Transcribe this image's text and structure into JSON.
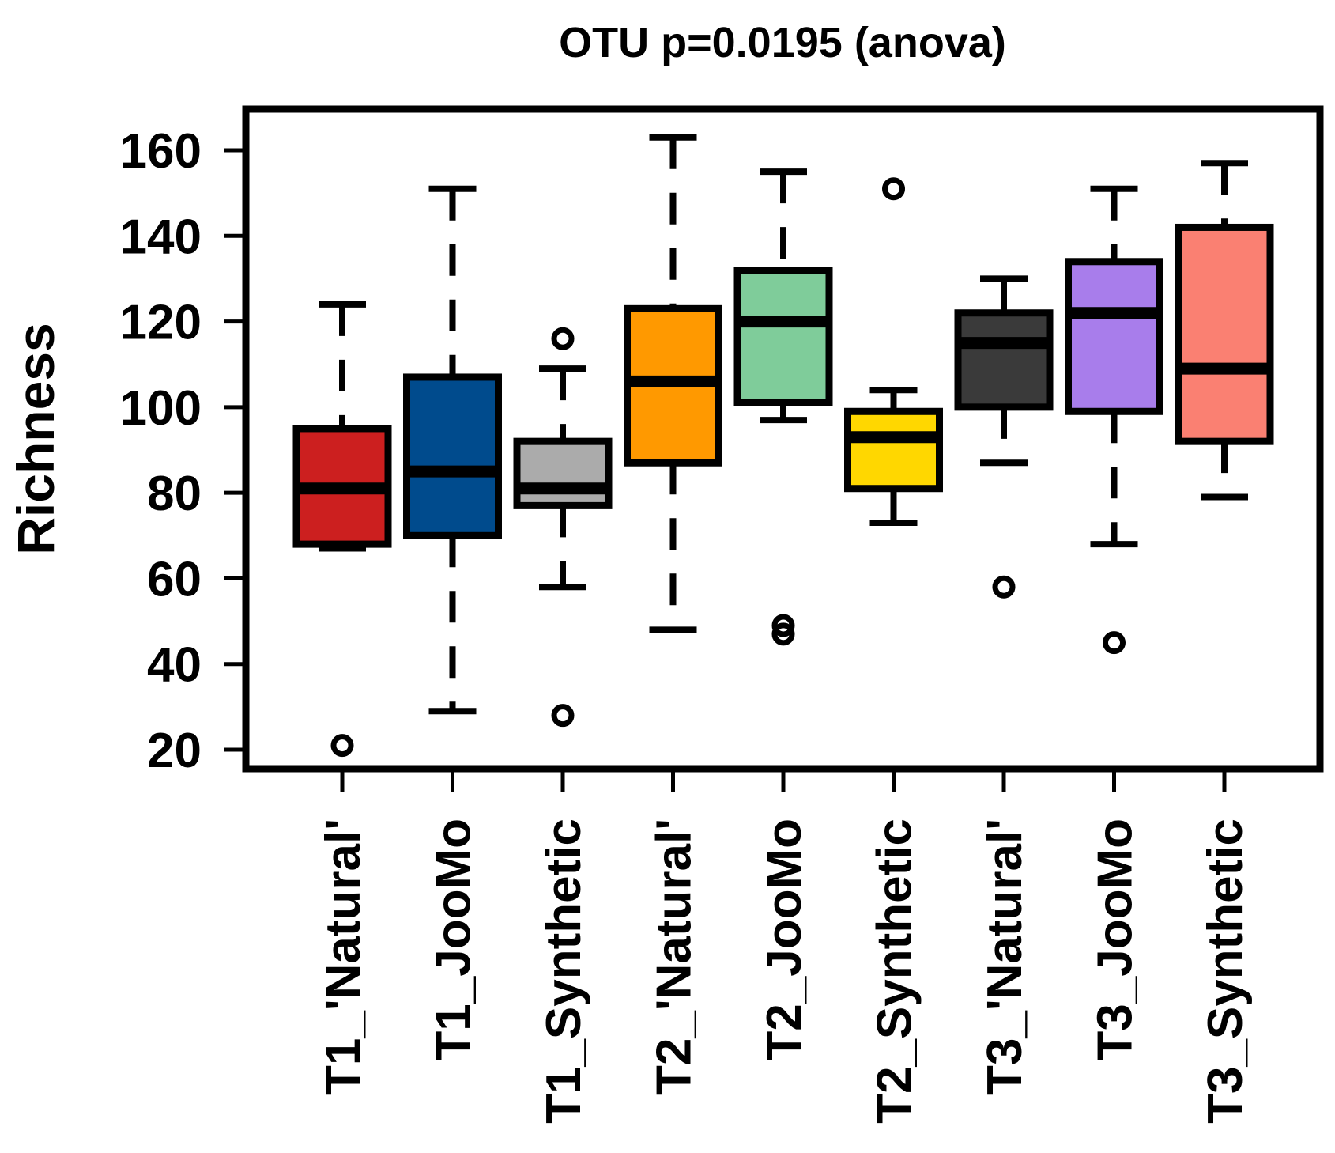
{
  "chart_data": {
    "type": "boxplot",
    "title": "OTU p=0.0195 (anova)",
    "ylabel": "Richness",
    "xlabel": "",
    "ylim": [
      18,
      166
    ],
    "yticks": [
      20,
      40,
      60,
      80,
      100,
      120,
      140,
      160
    ],
    "categories": [
      "T1_'Natural'",
      "T1_JooMo",
      "T1_Synthetic",
      "T2_'Natural'",
      "T2_JooMo",
      "T2_Synthetic",
      "T3_'Natural'",
      "T3_JooMo",
      "T3_Synthetic"
    ],
    "boxes": [
      {
        "whisker_low": 67,
        "q1": 68,
        "median": 81,
        "q3": 95,
        "whisker_high": 124,
        "outliers": [
          21
        ],
        "color": "#CC1F1F"
      },
      {
        "whisker_low": 29,
        "q1": 70,
        "median": 85,
        "q3": 107,
        "whisker_high": 151,
        "outliers": [],
        "color": "#004B8D"
      },
      {
        "whisker_low": 58,
        "q1": 77,
        "median": 81,
        "q3": 92,
        "whisker_high": 109,
        "outliers": [
          116,
          28
        ],
        "color": "#ABABAB"
      },
      {
        "whisker_low": 48,
        "q1": 87,
        "median": 106,
        "q3": 123,
        "whisker_high": 163,
        "outliers": [],
        "color": "#FF9900"
      },
      {
        "whisker_low": 97,
        "q1": 101,
        "median": 120,
        "q3": 132,
        "whisker_high": 155,
        "outliers": [
          49,
          47
        ],
        "color": "#7FCC9A"
      },
      {
        "whisker_low": 73,
        "q1": 81,
        "median": 93,
        "q3": 99,
        "whisker_high": 104,
        "outliers": [
          151
        ],
        "color": "#FFD700"
      },
      {
        "whisker_low": 87,
        "q1": 100,
        "median": 115,
        "q3": 122,
        "whisker_high": 130,
        "outliers": [
          58
        ],
        "color": "#3A3A3A"
      },
      {
        "whisker_low": 68,
        "q1": 99,
        "median": 122,
        "q3": 134,
        "whisker_high": 151,
        "outliers": [
          45
        ],
        "color": "#A87DEB"
      },
      {
        "whisker_low": 79,
        "q1": 92,
        "median": 109,
        "q3": 142,
        "whisker_high": 157,
        "outliers": [],
        "color": "#FA8072"
      }
    ]
  }
}
